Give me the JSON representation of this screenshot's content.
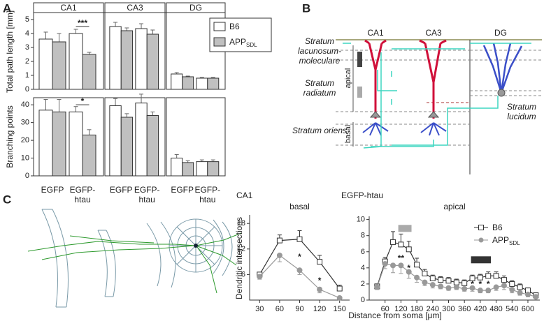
{
  "panel_labels": [
    "A",
    "B",
    "C"
  ],
  "chart_data": [
    {
      "type": "bar",
      "panels": [
        "CA1",
        "CA3",
        "DG"
      ],
      "ylabel": "Total path length [mm]",
      "ylim": [
        0,
        5.4
      ],
      "yticks": [
        0,
        1,
        2,
        3,
        4,
        5
      ],
      "series": [
        {
          "name": "B6",
          "color": "#ffffff",
          "values": [
            3.6,
            4.0,
            4.5,
            4.35,
            1.1,
            0.8
          ],
          "errors": [
            0.5,
            0.3,
            0.3,
            0.35,
            0.1,
            0.05
          ]
        },
        {
          "name": "APP",
          "name_sub": "SDL",
          "color": "#c0c0c0",
          "values": [
            3.4,
            2.5,
            4.2,
            3.95,
            0.9,
            0.8
          ],
          "errors": [
            0.6,
            0.15,
            0.2,
            0.3,
            0.05,
            0.05
          ]
        }
      ],
      "annotations": [
        {
          "text": "***",
          "index": 1,
          "y": 4.5
        }
      ]
    },
    {
      "type": "bar",
      "categories": [
        "EGFP",
        "EGFP-htau",
        "EGFP",
        "EGFP-htau",
        "EGFP",
        "EGFP-htau"
      ],
      "ylabel": "Branching points",
      "ylim": [
        0,
        44
      ],
      "yticks": [
        0,
        10,
        20,
        30,
        40
      ],
      "series": [
        {
          "color": "#ffffff",
          "values": [
            37,
            36,
            39.5,
            41,
            10,
            8
          ],
          "errors": [
            6,
            3,
            4,
            5,
            2,
            1
          ]
        },
        {
          "color": "#c0c0c0",
          "values": [
            36,
            23,
            33,
            34,
            7.5,
            8
          ],
          "errors": [
            7,
            3,
            2,
            2,
            1,
            1
          ]
        }
      ],
      "annotations": [
        {
          "text": "*",
          "index": 1,
          "y": 40
        }
      ]
    },
    {
      "type": "line",
      "title": "basal",
      "x": [
        30,
        60,
        90,
        120,
        150
      ],
      "xlim": [
        15,
        165
      ],
      "xticks": [
        30,
        60,
        90,
        120,
        150
      ],
      "ylim": [
        0,
        20
      ],
      "yticks": [
        6,
        12,
        18
      ],
      "series": [
        {
          "color": "#333333",
          "marker": "square",
          "values": [
            6,
            14,
            14.3,
            9,
            2.7
          ],
          "errors": [
            0.5,
            1.3,
            2.0,
            1.5,
            0.8
          ]
        },
        {
          "color": "#999999",
          "marker": "circle",
          "values": [
            5.5,
            10.5,
            7,
            2.5,
            0.5
          ],
          "errors": [
            0.6,
            1.5,
            1.0,
            0.8,
            0.3
          ]
        }
      ],
      "annotations": [
        {
          "text": "*",
          "x": 90,
          "y": 10.2
        },
        {
          "text": "*",
          "x": 120,
          "y": 4.6
        }
      ]
    },
    {
      "type": "line",
      "title": "apical",
      "x": [
        30,
        60,
        90,
        120,
        150,
        180,
        210,
        240,
        270,
        300,
        330,
        360,
        390,
        420,
        450,
        480,
        510,
        540,
        570,
        600,
        630
      ],
      "xlim": [
        0,
        645
      ],
      "xticks": [
        60,
        120,
        180,
        240,
        300,
        360,
        420,
        480,
        540,
        600
      ],
      "ylim": [
        0,
        10.4
      ],
      "yticks": [
        0,
        2,
        4,
        6,
        8,
        10
      ],
      "series": [
        {
          "name": "B6",
          "color": "#333333",
          "marker": "square",
          "values": [
            1.7,
            4.8,
            7.2,
            6.9,
            6.3,
            4.4,
            3.3,
            2.7,
            2.5,
            2.4,
            2.2,
            2.1,
            2.7,
            2.8,
            3.0,
            3.0,
            2.5,
            2.0,
            1.6,
            1.2,
            0.6
          ],
          "errors": [
            0.3,
            0.5,
            1.3,
            1.3,
            1.0,
            0.8,
            0.5,
            0.4,
            0.4,
            0.4,
            0.4,
            0.4,
            0.4,
            0.4,
            0.5,
            0.5,
            0.5,
            0.4,
            0.4,
            0.3,
            0.2
          ]
        },
        {
          "name": "APP",
          "name_sub": "SDL",
          "color": "#999999",
          "marker": "circle",
          "values": [
            1.6,
            4.5,
            4.3,
            4.3,
            3.5,
            2.8,
            2.2,
            1.9,
            1.7,
            1.5,
            1.6,
            1.4,
            1.5,
            1.2,
            1.2,
            1.6,
            1.8,
            1.3,
            0.9,
            0.7,
            0.4
          ],
          "errors": [
            0.3,
            0.6,
            0.9,
            1.0,
            0.8,
            0.6,
            0.4,
            0.4,
            0.3,
            0.3,
            0.3,
            0.3,
            0.4,
            0.3,
            0.3,
            0.4,
            0.5,
            0.4,
            0.3,
            0.3,
            0.2
          ]
        }
      ],
      "bands": [
        {
          "color": "#aaaaaa",
          "x": [
            110,
            160
          ],
          "y": 8.9
        },
        {
          "color": "#333333",
          "x": [
            385,
            460
          ],
          "y": 5.0
        }
      ],
      "annotations": [
        {
          "text": "**",
          "x": 120,
          "y": 5.2
        },
        {
          "text": "*",
          "x": 150,
          "y": 4.0
        },
        {
          "text": "*",
          "x": 390,
          "y": 2.0
        },
        {
          "text": "*",
          "x": 420,
          "y": 2.0
        },
        {
          "text": "*",
          "x": 450,
          "y": 2.0
        }
      ]
    }
  ],
  "panel_c": {
    "heading": "CA1",
    "subheading": "EGFP-htau",
    "ylabel": "Dendritic intersections",
    "xlabel": "Distance from soma [μm]"
  },
  "diagram": {
    "regions": [
      "CA1",
      "CA3",
      "DG"
    ],
    "layers": [
      "Stratum lacunosum-moleculare",
      "Stratum radiatum",
      "Stratum oriens",
      "Stratum lucidum"
    ],
    "axis_labels": [
      "apical",
      "basal"
    ]
  }
}
